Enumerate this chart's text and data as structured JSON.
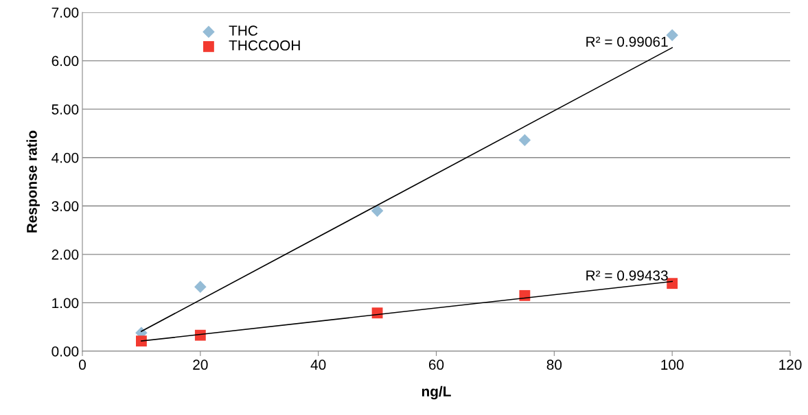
{
  "chart_data": {
    "type": "scatter",
    "xlabel": "ng/L",
    "ylabel": "Response ratio",
    "series": [
      {
        "name": "THC",
        "color": "#95bcd6",
        "marker": "diamond",
        "x": [
          10,
          20,
          50,
          75,
          100
        ],
        "values": [
          0.38,
          1.33,
          2.9,
          4.36,
          6.53
        ]
      },
      {
        "name": "THCCOOH",
        "color": "#f23a30",
        "marker": "square",
        "x": [
          10,
          20,
          50,
          75,
          100
        ],
        "values": [
          0.21,
          0.33,
          0.79,
          1.15,
          1.4
        ]
      },
      {
        "type": "line",
        "color": "#000000",
        "marker": "none",
        "x": [
          10,
          100
        ],
        "values": [
          0.41,
          6.27
        ]
      },
      {
        "type": "line",
        "color": "#000000",
        "marker": "none",
        "x": [
          10,
          100
        ],
        "values": [
          0.21,
          1.44
        ]
      }
    ],
    "annotations": [
      {
        "text": "R² = 0.99061",
        "x": 100,
        "y": 6.27
      },
      {
        "text": "R² = 0.99433",
        "x": 100,
        "y": 1.44
      }
    ],
    "xlim": [
      0,
      120
    ],
    "xticks": [
      0,
      20,
      40,
      60,
      80,
      100,
      120
    ],
    "ylim": [
      0,
      7
    ],
    "yticks": [
      {
        "value": 0,
        "label": "0.00"
      },
      {
        "value": 1,
        "label": "1.00"
      },
      {
        "value": 2,
        "label": "2.00"
      },
      {
        "value": 3,
        "label": "3.00"
      },
      {
        "value": 4,
        "label": "4.00"
      },
      {
        "value": 5,
        "label": "5.00"
      },
      {
        "value": 6,
        "label": "6.00"
      },
      {
        "value": 7,
        "label": "7.00"
      }
    ],
    "grid": "y",
    "legend": "top left"
  }
}
